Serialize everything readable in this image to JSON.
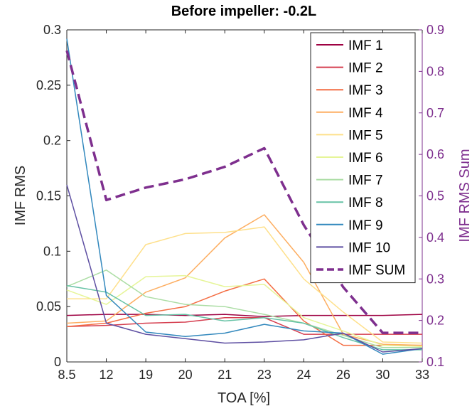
{
  "chart_data": {
    "type": "line",
    "title": "Before impeller: -0.2L",
    "xlabel": "TOA [%]",
    "ylabel": "IMF RMS",
    "y2label": "IMF RMS Sum",
    "categories": [
      "8.5",
      "12",
      "19",
      "20",
      "21",
      "23",
      "24",
      "26",
      "30",
      "33"
    ],
    "ylim": [
      0,
      0.3
    ],
    "yticks": [
      "0",
      "0.05",
      "0.1",
      "0.15",
      "0.2",
      "0.25",
      "0.3"
    ],
    "y2lim": [
      0.1,
      0.9
    ],
    "y2ticks": [
      "0.1",
      "0.2",
      "0.3",
      "0.4",
      "0.5",
      "0.6",
      "0.7",
      "0.8",
      "0.9"
    ],
    "legend_position": "top-right",
    "y2_color": "#7E2F8E",
    "series": [
      {
        "name": "IMF 1",
        "axis": "left",
        "color": "#9E0142",
        "values": [
          0.042,
          0.043,
          0.043,
          0.042,
          0.043,
          0.041,
          0.042,
          0.042,
          0.042,
          0.043
        ]
      },
      {
        "name": "IMF 2",
        "axis": "left",
        "color": "#D53E4F",
        "values": [
          0.032,
          0.033,
          0.035,
          0.036,
          0.04,
          0.04,
          0.025,
          0.025,
          0.025,
          0.025
        ]
      },
      {
        "name": "IMF 3",
        "axis": "left",
        "color": "#F46D43",
        "values": [
          0.032,
          0.035,
          0.044,
          0.05,
          0.064,
          0.075,
          0.037,
          0.015,
          0.015,
          0.015
        ]
      },
      {
        "name": "IMF 4",
        "axis": "left",
        "color": "#FDAE61",
        "values": [
          0.035,
          0.037,
          0.063,
          0.076,
          0.112,
          0.133,
          0.09,
          0.025,
          0.016,
          0.015
        ]
      },
      {
        "name": "IMF 5",
        "axis": "left",
        "color": "#FEE08B",
        "values": [
          0.057,
          0.057,
          0.106,
          0.116,
          0.117,
          0.122,
          0.075,
          0.045,
          0.018,
          0.017
        ]
      },
      {
        "name": "IMF 6",
        "axis": "left",
        "color": "#E6F598",
        "values": [
          0.065,
          0.052,
          0.077,
          0.078,
          0.068,
          0.07,
          0.04,
          0.028,
          0.015,
          0.014
        ]
      },
      {
        "name": "IMF 7",
        "axis": "left",
        "color": "#ABDDA4",
        "values": [
          0.068,
          0.083,
          0.059,
          0.052,
          0.05,
          0.043,
          0.035,
          0.024,
          0.013,
          0.013
        ]
      },
      {
        "name": "IMF 8",
        "axis": "left",
        "color": "#66C2A5",
        "values": [
          0.069,
          0.063,
          0.042,
          0.043,
          0.037,
          0.04,
          0.035,
          0.022,
          0.011,
          0.011
        ]
      },
      {
        "name": "IMF 9",
        "axis": "left",
        "color": "#3288BD",
        "values": [
          0.292,
          0.06,
          0.027,
          0.023,
          0.026,
          0.034,
          0.028,
          0.026,
          0.007,
          0.012
        ]
      },
      {
        "name": "IMF 10",
        "axis": "left",
        "color": "#5E4FA2",
        "values": [
          0.16,
          0.035,
          0.025,
          0.021,
          0.017,
          0.018,
          0.02,
          0.026,
          0.009,
          0.012
        ]
      },
      {
        "name": "IMF SUM",
        "axis": "right",
        "color": "#7E2F8E",
        "dashed": true,
        "values": [
          0.85,
          0.49,
          0.52,
          0.54,
          0.57,
          0.615,
          0.43,
          0.28,
          0.17,
          0.17
        ]
      }
    ]
  }
}
